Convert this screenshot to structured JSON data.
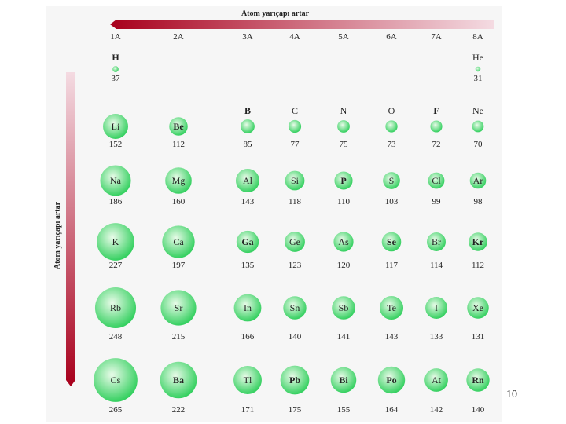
{
  "title_horizontal": "Atom yarıçapı artar",
  "title_vertical": "Atom yarıçapı artar",
  "colors": {
    "arrow_dark": "#a8001c",
    "arrow_light": "#f4dbe2",
    "sphere_light": "#e9fbe9",
    "sphere_dark": "#35d060"
  },
  "groups": [
    "1A",
    "2A",
    "3A",
    "4A",
    "5A",
    "6A",
    "7A",
    "8A"
  ],
  "elements": [
    {
      "symbol": "H",
      "radius": "37",
      "row": 0,
      "col": 0,
      "bold": true
    },
    {
      "symbol": "He",
      "radius": "31",
      "row": 0,
      "col": 7
    },
    {
      "symbol": "Li",
      "radius": "152",
      "row": 1,
      "col": 0
    },
    {
      "symbol": "Be",
      "radius": "112",
      "row": 1,
      "col": 1,
      "bold": true
    },
    {
      "symbol": "B",
      "radius": "85",
      "row": 1,
      "col": 2,
      "bold": true
    },
    {
      "symbol": "C",
      "radius": "77",
      "row": 1,
      "col": 3
    },
    {
      "symbol": "N",
      "radius": "75",
      "row": 1,
      "col": 4
    },
    {
      "symbol": "O",
      "radius": "73",
      "row": 1,
      "col": 5
    },
    {
      "symbol": "F",
      "radius": "72",
      "row": 1,
      "col": 6,
      "bold": true
    },
    {
      "symbol": "Ne",
      "radius": "70",
      "row": 1,
      "col": 7
    },
    {
      "symbol": "Na",
      "radius": "186",
      "row": 2,
      "col": 0
    },
    {
      "symbol": "Mg",
      "radius": "160",
      "row": 2,
      "col": 1
    },
    {
      "symbol": "Al",
      "radius": "143",
      "row": 2,
      "col": 2
    },
    {
      "symbol": "Si",
      "radius": "118",
      "row": 2,
      "col": 3
    },
    {
      "symbol": "P",
      "radius": "110",
      "row": 2,
      "col": 4,
      "bold": true
    },
    {
      "symbol": "S",
      "radius": "103",
      "row": 2,
      "col": 5
    },
    {
      "symbol": "Cl",
      "radius": "99",
      "row": 2,
      "col": 6
    },
    {
      "symbol": "Ar",
      "radius": "98",
      "row": 2,
      "col": 7
    },
    {
      "symbol": "K",
      "radius": "227",
      "row": 3,
      "col": 0
    },
    {
      "symbol": "Ca",
      "radius": "197",
      "row": 3,
      "col": 1
    },
    {
      "symbol": "Ga",
      "radius": "135",
      "row": 3,
      "col": 2,
      "bold": true
    },
    {
      "symbol": "Ge",
      "radius": "123",
      "row": 3,
      "col": 3
    },
    {
      "symbol": "As",
      "radius": "120",
      "row": 3,
      "col": 4
    },
    {
      "symbol": "Se",
      "radius": "117",
      "row": 3,
      "col": 5,
      "bold": true
    },
    {
      "symbol": "Br",
      "radius": "114",
      "row": 3,
      "col": 6
    },
    {
      "symbol": "Kr",
      "radius": "112",
      "row": 3,
      "col": 7,
      "bold": true
    },
    {
      "symbol": "Rb",
      "radius": "248",
      "row": 4,
      "col": 0
    },
    {
      "symbol": "Sr",
      "radius": "215",
      "row": 4,
      "col": 1
    },
    {
      "symbol": "In",
      "radius": "166",
      "row": 4,
      "col": 2
    },
    {
      "symbol": "Sn",
      "radius": "140",
      "row": 4,
      "col": 3
    },
    {
      "symbol": "Sb",
      "radius": "141",
      "row": 4,
      "col": 4
    },
    {
      "symbol": "Te",
      "radius": "143",
      "row": 4,
      "col": 5
    },
    {
      "symbol": "I",
      "radius": "133",
      "row": 4,
      "col": 6
    },
    {
      "symbol": "Xe",
      "radius": "131",
      "row": 4,
      "col": 7
    },
    {
      "symbol": "Cs",
      "radius": "265",
      "row": 5,
      "col": 0
    },
    {
      "symbol": "Ba",
      "radius": "222",
      "row": 5,
      "col": 1,
      "bold": true
    },
    {
      "symbol": "Tl",
      "radius": "171",
      "row": 5,
      "col": 2
    },
    {
      "symbol": "Pb",
      "radius": "175",
      "row": 5,
      "col": 3,
      "bold": true
    },
    {
      "symbol": "Bi",
      "radius": "155",
      "row": 5,
      "col": 4,
      "bold": true
    },
    {
      "symbol": "Po",
      "radius": "164",
      "row": 5,
      "col": 5,
      "bold": true
    },
    {
      "symbol": "At",
      "radius": "142",
      "row": 5,
      "col": 6
    },
    {
      "symbol": "Rn",
      "radius": "140",
      "row": 5,
      "col": 7,
      "bold": true
    }
  ],
  "page_number": "10"
}
